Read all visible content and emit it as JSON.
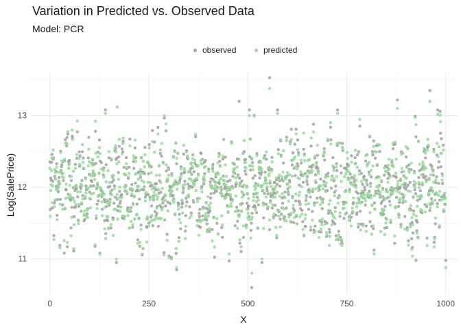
{
  "chart_data": {
    "type": "scatter",
    "title": "Variation in Predicted vs. Observed Data",
    "subtitle": "Model: PCR",
    "xlabel": "X",
    "ylabel": "Log(SalePrice)",
    "xlim": [
      -50,
      1030
    ],
    "ylim": [
      10.5,
      13.6
    ],
    "x_ticks": [
      0,
      250,
      500,
      750,
      1000
    ],
    "x_tick_labels": [
      "0",
      "250",
      "500",
      "750",
      "1000"
    ],
    "y_ticks": [
      11,
      12,
      13
    ],
    "y_tick_labels": [
      "11",
      "12",
      "13"
    ],
    "grid": true,
    "legend_position": "top",
    "n_points_per_series": 1000,
    "series": [
      {
        "name": "observed",
        "color": "#a6a6a6",
        "summary": {
          "mean": 12.0,
          "sd": 0.38,
          "min": 10.6,
          "max": 13.53
        },
        "notable_points": [
          {
            "x": 555,
            "y": 13.53
          },
          {
            "x": 960,
            "y": 13.35
          },
          {
            "x": 478,
            "y": 13.2
          },
          {
            "x": 878,
            "y": 13.22
          },
          {
            "x": 320,
            "y": 10.85
          },
          {
            "x": 510,
            "y": 10.6
          },
          {
            "x": 925,
            "y": 10.98
          },
          {
            "x": 1000,
            "y": 10.98
          }
        ]
      },
      {
        "name": "predicted",
        "color": "#98e09a",
        "summary": {
          "mean": 12.0,
          "sd": 0.36,
          "min": 10.75,
          "max": 13.38
        },
        "notable_points": [
          {
            "x": 555,
            "y": 13.38
          },
          {
            "x": 960,
            "y": 13.2
          },
          {
            "x": 170,
            "y": 13.12
          },
          {
            "x": 878,
            "y": 13.1
          },
          {
            "x": 320,
            "y": 10.88
          },
          {
            "x": 510,
            "y": 10.8
          },
          {
            "x": 1000,
            "y": 10.88
          }
        ]
      }
    ]
  }
}
